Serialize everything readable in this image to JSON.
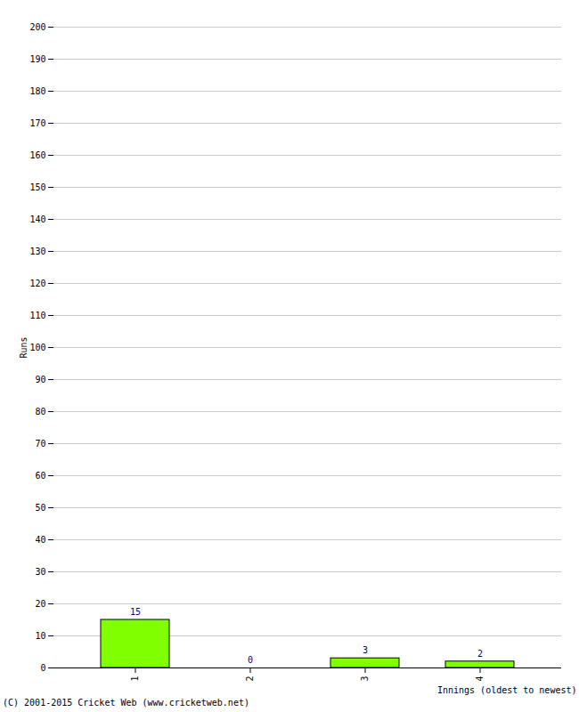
{
  "chart_data": {
    "type": "bar",
    "categories": [
      "1",
      "2",
      "3",
      "4"
    ],
    "values": [
      15,
      0,
      3,
      2
    ],
    "color": "#80ff00",
    "ylim": [
      0,
      200
    ],
    "yticks": [
      0,
      10,
      20,
      30,
      40,
      50,
      60,
      70,
      80,
      90,
      100,
      110,
      120,
      130,
      140,
      150,
      160,
      170,
      180,
      190,
      200
    ],
    "grid": true,
    "data_labels": true,
    "x_label": "Innings (oldest to newest)",
    "y_label": "Runs",
    "caption": "(C) 2001-2015 Cricket Web (www.cricketweb.net)"
  }
}
